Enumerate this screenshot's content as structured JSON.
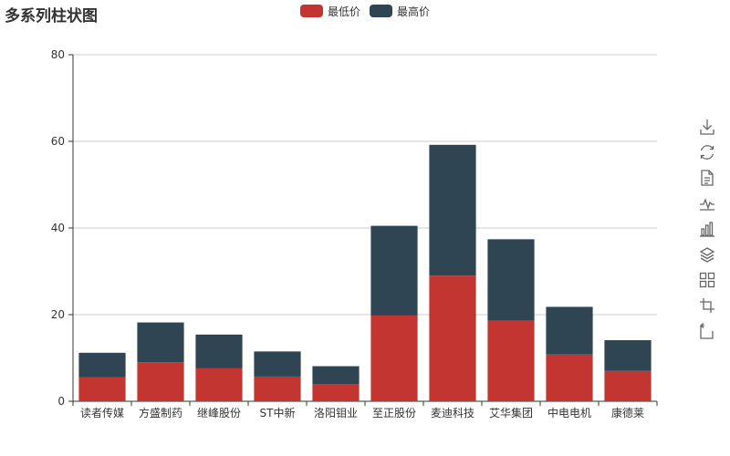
{
  "chart_data": {
    "type": "bar",
    "stacked": true,
    "title": "多系列柱状图",
    "categories": [
      "读者传媒",
      "方盛制药",
      "继峰股份",
      "ST中新",
      "洛阳钼业",
      "至正股份",
      "麦迪科技",
      "艾华集团",
      "中电电机",
      "康德莱"
    ],
    "series": [
      {
        "name": "最低价",
        "color": "#c23531",
        "values": [
          5.5,
          9.0,
          7.6,
          5.7,
          4.0,
          19.8,
          29.0,
          18.6,
          10.8,
          7.0
        ]
      },
      {
        "name": "最高价",
        "color": "#2f4554",
        "values": [
          5.7,
          9.2,
          7.8,
          5.8,
          4.1,
          20.7,
          30.2,
          18.8,
          11.0,
          7.1
        ]
      }
    ],
    "ylim": [
      0,
      80
    ],
    "yticks": [
      0,
      20,
      40,
      60,
      80
    ],
    "grid": true,
    "legend_position": "top-center"
  },
  "toolbox": {
    "icons": [
      "save-as-image-icon",
      "restore-icon",
      "data-view-icon",
      "line-chart-icon",
      "bar-chart-icon",
      "stack-icon",
      "tiled-icon",
      "data-zoom-icon",
      "zoom-reset-icon"
    ]
  }
}
